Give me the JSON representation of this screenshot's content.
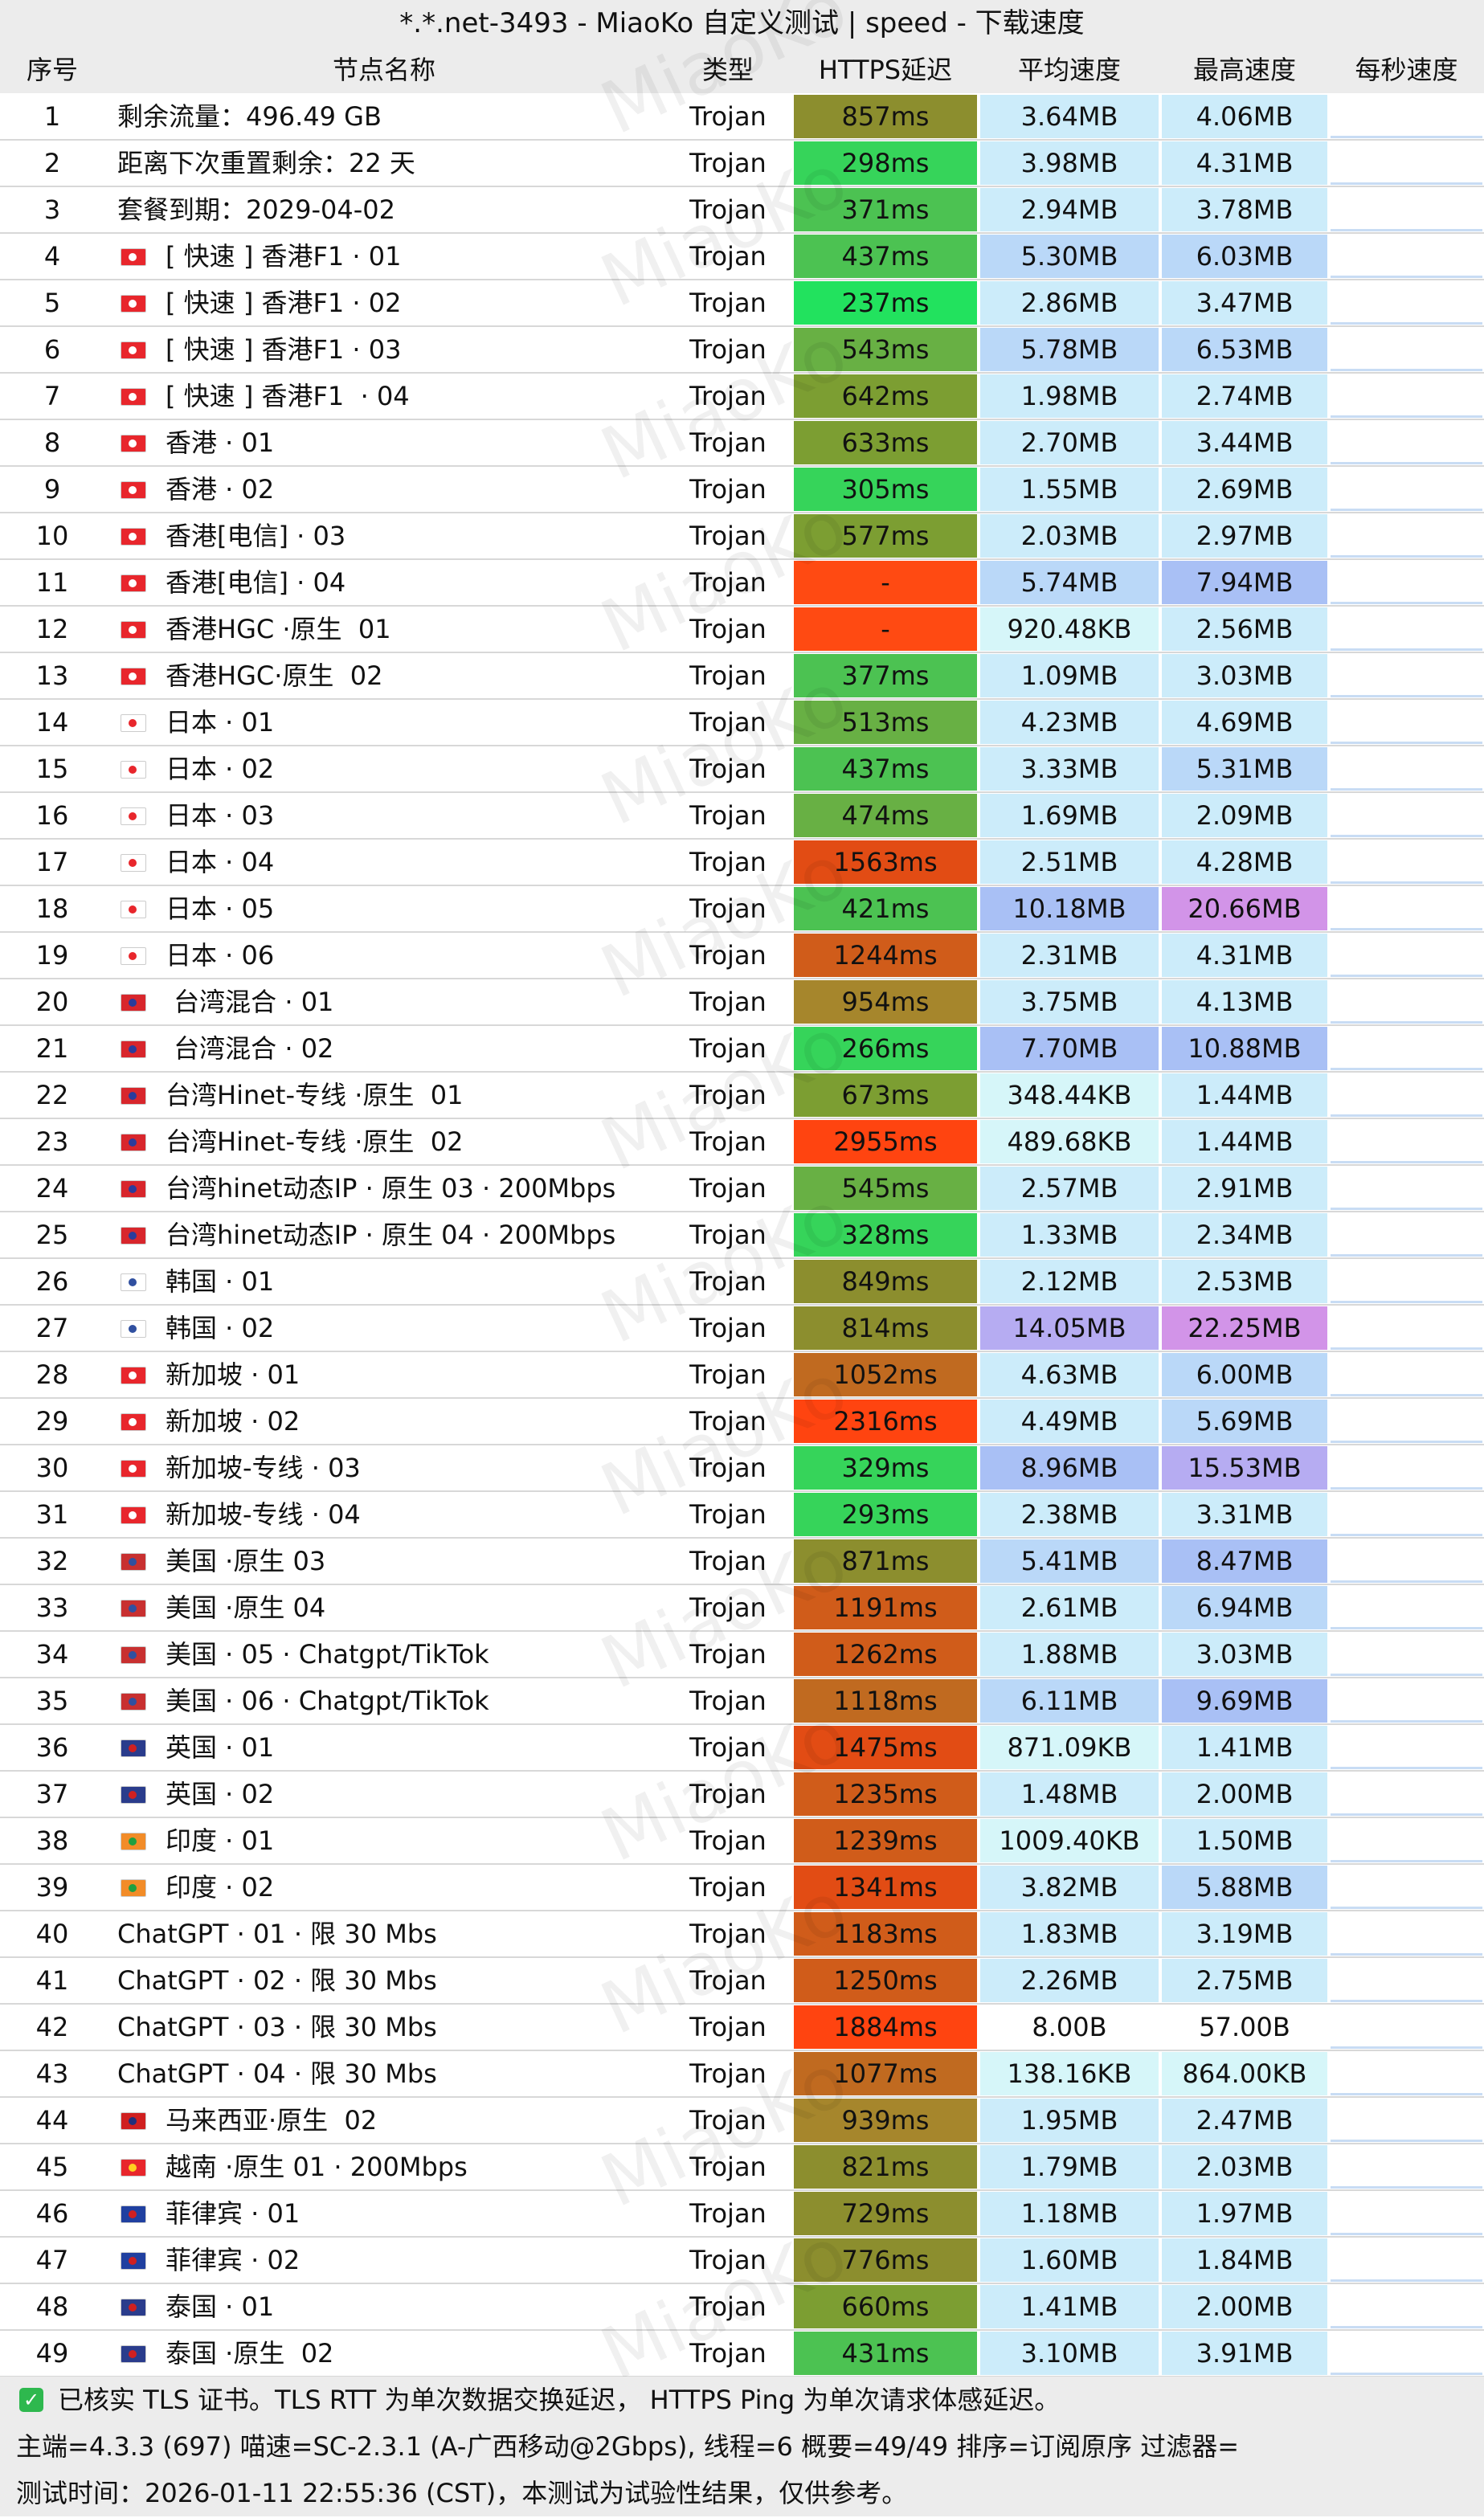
{
  "header": {
    "title": "*.*.net-3493 - MiaoKo 自定义测试 | speed - 下载速度"
  },
  "watermark": "MiaoKo",
  "table": {
    "columns": [
      "序号",
      "节点名称",
      "类型",
      "HTTPS延迟",
      "平均速度",
      "最高速度",
      "每秒速度"
    ],
    "rows": [
      [
        1,
        "剩余流量：496.49 GB",
        "Trojan",
        "857ms",
        "3.64MB",
        "4.06MB"
      ],
      [
        2,
        "距离下次重置剩余：22 天",
        "Trojan",
        "298ms",
        "3.98MB",
        "4.31MB"
      ],
      [
        3,
        "套餐到期：2029-04-02",
        "Trojan",
        "371ms",
        "2.94MB",
        "3.78MB"
      ],
      [
        4,
        "[ 快速 ] 香港F1 · 01",
        "Trojan",
        "437ms",
        "5.30MB",
        "6.03MB"
      ],
      [
        5,
        "[ 快速 ] 香港F1 · 02",
        "Trojan",
        "237ms",
        "2.86MB",
        "3.47MB"
      ],
      [
        6,
        "[ 快速 ] 香港F1 · 03",
        "Trojan",
        "543ms",
        "5.78MB",
        "6.53MB"
      ],
      [
        7,
        "[ 快速 ] 香港F1  · 04",
        "Trojan",
        "642ms",
        "1.98MB",
        "2.74MB"
      ],
      [
        8,
        "香港 · 01",
        "Trojan",
        "633ms",
        "2.70MB",
        "3.44MB"
      ],
      [
        9,
        "香港 · 02",
        "Trojan",
        "305ms",
        "1.55MB",
        "2.69MB"
      ],
      [
        10,
        "香港[电信] · 03",
        "Trojan",
        "577ms",
        "2.03MB",
        "2.97MB"
      ],
      [
        11,
        "香港[电信] · 04",
        "Trojan",
        "-",
        "5.74MB",
        "7.94MB"
      ],
      [
        12,
        "香港HGC ·原生  01",
        "Trojan",
        "-",
        "920.48KB",
        "2.56MB"
      ],
      [
        13,
        "香港HGC·原生  02",
        "Trojan",
        "377ms",
        "1.09MB",
        "3.03MB"
      ],
      [
        14,
        "日本 · 01",
        "Trojan",
        "513ms",
        "4.23MB",
        "4.69MB"
      ],
      [
        15,
        "日本 · 02",
        "Trojan",
        "437ms",
        "3.33MB",
        "5.31MB"
      ],
      [
        16,
        "日本 · 03",
        "Trojan",
        "474ms",
        "1.69MB",
        "2.09MB"
      ],
      [
        17,
        "日本 · 04",
        "Trojan",
        "1563ms",
        "2.51MB",
        "4.28MB"
      ],
      [
        18,
        "日本 · 05",
        "Trojan",
        "421ms",
        "10.18MB",
        "20.66MB"
      ],
      [
        19,
        "日本 · 06",
        "Trojan",
        "1244ms",
        "2.31MB",
        "4.31MB"
      ],
      [
        20,
        " 台湾混合 · 01",
        "Trojan",
        "954ms",
        "3.75MB",
        "4.13MB"
      ],
      [
        21,
        " 台湾混合 · 02",
        "Trojan",
        "266ms",
        "7.70MB",
        "10.88MB"
      ],
      [
        22,
        "台湾Hinet-专线 ·原生  01",
        "Trojan",
        "673ms",
        "348.44KB",
        "1.44MB"
      ],
      [
        23,
        "台湾Hinet-专线 ·原生  02",
        "Trojan",
        "2955ms",
        "489.68KB",
        "1.44MB"
      ],
      [
        24,
        "台湾hinet动态IP · 原生 03 · 200Mbps",
        "Trojan",
        "545ms",
        "2.57MB",
        "2.91MB"
      ],
      [
        25,
        "台湾hinet动态IP · 原生 04 · 200Mbps",
        "Trojan",
        "328ms",
        "1.33MB",
        "2.34MB"
      ],
      [
        26,
        "韩国 · 01",
        "Trojan",
        "849ms",
        "2.12MB",
        "2.53MB"
      ],
      [
        27,
        "韩国 · 02",
        "Trojan",
        "814ms",
        "14.05MB",
        "22.25MB"
      ],
      [
        28,
        "新加坡 · 01",
        "Trojan",
        "1052ms",
        "4.63MB",
        "6.00MB"
      ],
      [
        29,
        "新加坡 · 02",
        "Trojan",
        "2316ms",
        "4.49MB",
        "5.69MB"
      ],
      [
        30,
        "新加坡-专线 · 03",
        "Trojan",
        "329ms",
        "8.96MB",
        "15.53MB"
      ],
      [
        31,
        "新加坡-专线 · 04",
        "Trojan",
        "293ms",
        "2.38MB",
        "3.31MB"
      ],
      [
        32,
        "美国 ·原生 03",
        "Trojan",
        "871ms",
        "5.41MB",
        "8.47MB"
      ],
      [
        33,
        "美国 ·原生 04",
        "Trojan",
        "1191ms",
        "2.61MB",
        "6.94MB"
      ],
      [
        34,
        "美国 · 05 · Chatgpt/TikTok",
        "Trojan",
        "1262ms",
        "1.88MB",
        "3.03MB"
      ],
      [
        35,
        "美国 · 06 · Chatgpt/TikTok",
        "Trojan",
        "1118ms",
        "6.11MB",
        "9.69MB"
      ],
      [
        36,
        "英国 · 01",
        "Trojan",
        "1475ms",
        "871.09KB",
        "1.41MB"
      ],
      [
        37,
        "英国 · 02",
        "Trojan",
        "1235ms",
        "1.48MB",
        "2.00MB"
      ],
      [
        38,
        "印度 · 01",
        "Trojan",
        "1239ms",
        "1009.40KB",
        "1.50MB"
      ],
      [
        39,
        "印度 · 02",
        "Trojan",
        "1341ms",
        "3.82MB",
        "5.88MB"
      ],
      [
        40,
        "ChatGPT · 01 · 限 30 Mbs",
        "Trojan",
        "1183ms",
        "1.83MB",
        "3.19MB"
      ],
      [
        41,
        "ChatGPT · 02 · 限 30 Mbs",
        "Trojan",
        "1250ms",
        "2.26MB",
        "2.75MB"
      ],
      [
        42,
        "ChatGPT · 03 · 限 30 Mbs",
        "Trojan",
        "1884ms",
        "8.00B",
        "57.00B"
      ],
      [
        43,
        "ChatGPT · 04 · 限 30 Mbs",
        "Trojan",
        "1077ms",
        "138.16KB",
        "864.00KB"
      ],
      [
        44,
        "马来西亚·原生  02",
        "Trojan",
        "939ms",
        "1.95MB",
        "2.47MB"
      ],
      [
        45,
        "越南 ·原生 01 · 200Mbps",
        "Trojan",
        "821ms",
        "1.79MB",
        "2.03MB"
      ],
      [
        46,
        "菲律宾 · 01",
        "Trojan",
        "729ms",
        "1.18MB",
        "1.97MB"
      ],
      [
        47,
        "菲律宾 · 02",
        "Trojan",
        "776ms",
        "1.60MB",
        "1.84MB"
      ],
      [
        48,
        "泰国 · 01",
        "Trojan",
        "660ms",
        "1.41MB",
        "2.00MB"
      ],
      [
        49,
        "泰国 ·原生  02",
        "Trojan",
        "431ms",
        "3.10MB",
        "3.91MB"
      ]
    ]
  },
  "footer": {
    "lines": [
      "已核实 TLS 证书。TLS RTT 为单次数据交换延迟， HTTPS Ping 为单次请求体感延迟。",
      "主端=4.3.3 (697) 喵速=SC-2.3.1 (A-广西移动@2Gbps), 线程=6 概要=49/49 排序=订阅原序 过滤器=",
      "测试时间：2026-01-11 22:55:36 (CST)，本测试为试验性结果，仅供参考。"
    ]
  }
}
